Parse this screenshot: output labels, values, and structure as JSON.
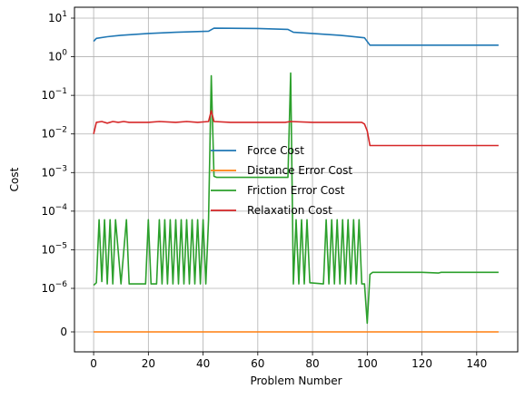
{
  "chart_data": {
    "type": "line",
    "xlabel": "Problem Number",
    "ylabel": "Cost",
    "y_scale": "symlog",
    "grid": true,
    "legend_position": "center",
    "xlim": [
      -7,
      155
    ],
    "x_ticks": [
      0,
      20,
      40,
      60,
      80,
      100,
      120,
      140
    ],
    "y_ticks": [
      {
        "value": 0,
        "label": "0"
      },
      {
        "value": 1e-06,
        "label": "10^-6"
      },
      {
        "value": 1e-05,
        "label": "10^-5"
      },
      {
        "value": 0.0001,
        "label": "10^-4"
      },
      {
        "value": 0.001,
        "label": "10^-3"
      },
      {
        "value": 0.01,
        "label": "10^-2"
      },
      {
        "value": 0.1,
        "label": "10^-1"
      },
      {
        "value": 1,
        "label": "10^0"
      },
      {
        "value": 10,
        "label": "10^1"
      }
    ],
    "series": [
      {
        "name": "Force Cost",
        "color": "#1f77b4",
        "points": [
          [
            0,
            2.5
          ],
          [
            1,
            3.0
          ],
          [
            5,
            3.3
          ],
          [
            10,
            3.6
          ],
          [
            20,
            4.0
          ],
          [
            30,
            4.3
          ],
          [
            42,
            4.6
          ],
          [
            44,
            5.5
          ],
          [
            60,
            5.4
          ],
          [
            71,
            5.1
          ],
          [
            73,
            4.3
          ],
          [
            80,
            4.0
          ],
          [
            90,
            3.6
          ],
          [
            99,
            3.1
          ],
          [
            101,
            2.0
          ],
          [
            120,
            2.0
          ],
          [
            148,
            2.0
          ]
        ]
      },
      {
        "name": "Distance Error Cost",
        "color": "#ff7f0e",
        "points": [
          [
            0,
            0
          ],
          [
            148,
            0
          ]
        ]
      },
      {
        "name": "Friction Error Cost",
        "color": "#2ca02c",
        "points": [
          [
            0,
            1.2e-06
          ],
          [
            1,
            1.4e-06
          ],
          [
            2,
            6e-05
          ],
          [
            3,
            1.5e-06
          ],
          [
            4,
            6e-05
          ],
          [
            5,
            1.3e-06
          ],
          [
            6,
            6e-05
          ],
          [
            7,
            1.3e-06
          ],
          [
            8,
            6e-05
          ],
          [
            10,
            1.3e-06
          ],
          [
            12,
            6e-05
          ],
          [
            13,
            1.3e-06
          ],
          [
            19,
            1.3e-06
          ],
          [
            20,
            6e-05
          ],
          [
            21,
            1.3e-06
          ],
          [
            23,
            1.3e-06
          ],
          [
            24,
            6e-05
          ],
          [
            25,
            1.3e-06
          ],
          [
            26,
            6e-05
          ],
          [
            27,
            1.3e-06
          ],
          [
            28,
            6e-05
          ],
          [
            29,
            1.3e-06
          ],
          [
            30,
            6e-05
          ],
          [
            31,
            1.3e-06
          ],
          [
            32,
            6e-05
          ],
          [
            33,
            1.3e-06
          ],
          [
            34,
            6e-05
          ],
          [
            35,
            1.3e-06
          ],
          [
            36,
            6e-05
          ],
          [
            37,
            1.3e-06
          ],
          [
            38,
            6e-05
          ],
          [
            39,
            1.3e-06
          ],
          [
            40,
            6e-05
          ],
          [
            41,
            1.3e-06
          ],
          [
            42,
            6e-05
          ],
          [
            43,
            0.32
          ],
          [
            44,
            0.0008
          ],
          [
            45,
            0.00075
          ],
          [
            60,
            0.00075
          ],
          [
            71,
            0.00075
          ],
          [
            72,
            0.38
          ],
          [
            73,
            1.3e-06
          ],
          [
            74,
            6e-05
          ],
          [
            75,
            1.3e-06
          ],
          [
            76,
            6e-05
          ],
          [
            77,
            1.3e-06
          ],
          [
            78,
            6e-05
          ],
          [
            79,
            1.4e-06
          ],
          [
            84,
            1.3e-06
          ],
          [
            85,
            6e-05
          ],
          [
            86,
            1.3e-06
          ],
          [
            87,
            6e-05
          ],
          [
            88,
            1.3e-06
          ],
          [
            89,
            6e-05
          ],
          [
            90,
            1.3e-06
          ],
          [
            91,
            6e-05
          ],
          [
            92,
            1.3e-06
          ],
          [
            93,
            6e-05
          ],
          [
            94,
            1.3e-06
          ],
          [
            95,
            6e-05
          ],
          [
            96,
            1.3e-06
          ],
          [
            97,
            6e-05
          ],
          [
            98,
            1.3e-06
          ],
          [
            99,
            1.3e-06
          ],
          [
            100,
            2e-07
          ],
          [
            101,
            2.3e-06
          ],
          [
            102,
            2.6e-06
          ],
          [
            120,
            2.6e-06
          ],
          [
            126,
            2.5e-06
          ],
          [
            127,
            2.6e-06
          ],
          [
            148,
            2.6e-06
          ]
        ]
      },
      {
        "name": "Relaxation Cost",
        "color": "#d62728",
        "points": [
          [
            0,
            0.01
          ],
          [
            1,
            0.02
          ],
          [
            3,
            0.021
          ],
          [
            5,
            0.019
          ],
          [
            7,
            0.021
          ],
          [
            9,
            0.02
          ],
          [
            11,
            0.021
          ],
          [
            13,
            0.02
          ],
          [
            15,
            0.02
          ],
          [
            20,
            0.02
          ],
          [
            24,
            0.021
          ],
          [
            30,
            0.02
          ],
          [
            34,
            0.021
          ],
          [
            38,
            0.02
          ],
          [
            42,
            0.021
          ],
          [
            43,
            0.04
          ],
          [
            44,
            0.021
          ],
          [
            50,
            0.02
          ],
          [
            60,
            0.02
          ],
          [
            70,
            0.02
          ],
          [
            72,
            0.021
          ],
          [
            80,
            0.02
          ],
          [
            90,
            0.02
          ],
          [
            98,
            0.02
          ],
          [
            99,
            0.018
          ],
          [
            100,
            0.012
          ],
          [
            101,
            0.005
          ],
          [
            148,
            0.005
          ]
        ]
      }
    ]
  }
}
